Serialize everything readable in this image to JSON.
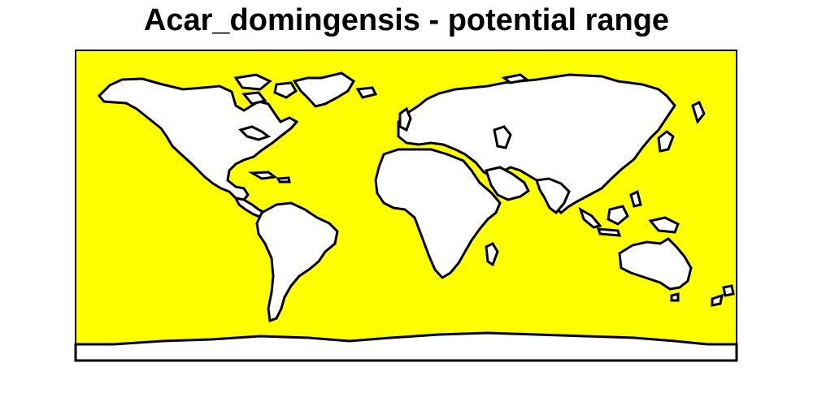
{
  "title": "Acar_domingensis - potential range",
  "colors": {
    "ocean": "#ffff00",
    "land": "#ffffff",
    "outline": "#000000",
    "background": "#ffffff"
  }
}
